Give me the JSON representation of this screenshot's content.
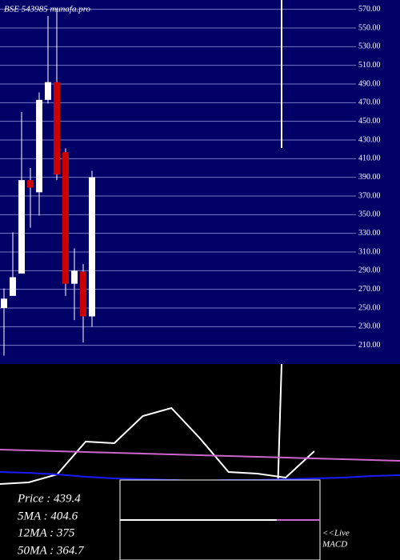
{
  "chart_data": [
    {
      "type": "candlestick",
      "title": "BSE 543985 munafa.pro",
      "ylim": [
        190,
        580
      ],
      "yticks": [
        {
          "value": 570,
          "label": "570.00"
        },
        {
          "value": 550,
          "label": "550.00"
        },
        {
          "value": 530,
          "label": "530.00"
        },
        {
          "value": 510,
          "label": "510.00"
        },
        {
          "value": 490,
          "label": "490.00"
        },
        {
          "value": 470,
          "label": "470.00"
        },
        {
          "value": 450,
          "label": "450.00"
        },
        {
          "value": 430,
          "label": "430.00"
        },
        {
          "value": 410,
          "label": "410.00"
        },
        {
          "value": 390,
          "label": "390.00"
        },
        {
          "value": 370,
          "label": "370.00"
        },
        {
          "value": 350,
          "label": "350.00"
        },
        {
          "value": 330,
          "label": "330.00"
        },
        {
          "value": 310,
          "label": "310.00"
        },
        {
          "value": 290,
          "label": "290.00"
        },
        {
          "value": 270,
          "label": "270.00"
        },
        {
          "value": 250,
          "label": "250.00"
        },
        {
          "value": 230,
          "label": "230.00"
        },
        {
          "value": 210,
          "label": "210.00"
        }
      ],
      "up_color": "#ffffff",
      "down_color": "#cc0000",
      "grid": true,
      "candles": [
        {
          "open": 250,
          "high": 271,
          "low": 199,
          "close": 260
        },
        {
          "open": 263,
          "high": 331,
          "low": 263,
          "close": 283
        },
        {
          "open": 287,
          "high": 460,
          "low": 287,
          "close": 387
        },
        {
          "open": 387,
          "high": 400,
          "low": 336,
          "close": 379
        },
        {
          "open": 374,
          "high": 481,
          "low": 349,
          "close": 473
        },
        {
          "open": 473,
          "high": 563,
          "low": 469,
          "close": 492
        },
        {
          "open": 492,
          "high": 571,
          "low": 387,
          "close": 393
        },
        {
          "open": 417,
          "high": 421,
          "low": 263,
          "close": 276
        },
        {
          "open": 276,
          "high": 314,
          "low": 237,
          "close": 290
        },
        {
          "open": 289,
          "high": 297,
          "low": 213,
          "close": 241
        },
        {
          "open": 241,
          "high": 397,
          "low": 230,
          "close": 390
        }
      ],
      "info": [
        "Price   : 439.4",
        "5MA  : 404.6",
        "12MA  : 375",
        "50MA  : 364.7"
      ],
      "live_label": [
        "<<Live",
        "MACD"
      ]
    },
    {
      "type": "line",
      "ylim": [
        0,
        245
      ],
      "categories": [
        null,
        null,
        null,
        null,
        null,
        null,
        null,
        null,
        null,
        null,
        null,
        null,
        null,
        null,
        null
      ],
      "series": [
        {
          "color": "#ffffff",
          "values": [
            95,
            97,
            107,
            148,
            146,
            180,
            190,
            152,
            110,
            108,
            103,
            136,
            null,
            null,
            null
          ]
        },
        {
          "color": "#cc66cc",
          "values": [
            138,
            137,
            136,
            135,
            134,
            133,
            132,
            131,
            130,
            129,
            128,
            127,
            126,
            125,
            124
          ]
        },
        {
          "color": "#1a1aff",
          "values": [
            110,
            109,
            107,
            104,
            102,
            101,
            100,
            99,
            100,
            100,
            101,
            102,
            103,
            105,
            106
          ]
        }
      ]
    }
  ]
}
